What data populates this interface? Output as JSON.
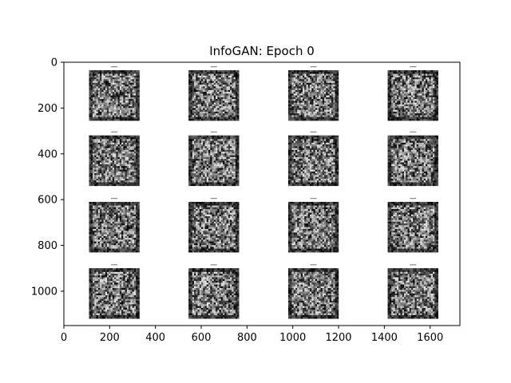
{
  "chart_data": {
    "type": "heatmap",
    "title": "InfoGAN: Epoch 0",
    "xlabel": "",
    "ylabel": "",
    "xlim": [
      0,
      1730
    ],
    "ylim": [
      1150,
      0
    ],
    "y_inverted": true,
    "x_ticks": [
      "0",
      "200",
      "400",
      "600",
      "800",
      "1000",
      "1200",
      "1400",
      "1600"
    ],
    "y_ticks": [
      "0",
      "200",
      "400",
      "600",
      "800",
      "1000"
    ],
    "grid": false,
    "colormap": "gray",
    "panels": {
      "rows": 4,
      "cols": 4,
      "col_x_ranges": [
        [
          110,
          330
        ],
        [
          545,
          765
        ],
        [
          980,
          1200
        ],
        [
          1415,
          1635
        ]
      ],
      "row_y_ranges": [
        [
          35,
          255
        ],
        [
          320,
          540
        ],
        [
          610,
          830
        ],
        [
          900,
          1120
        ]
      ],
      "content": "random grayscale noise patches"
    }
  }
}
